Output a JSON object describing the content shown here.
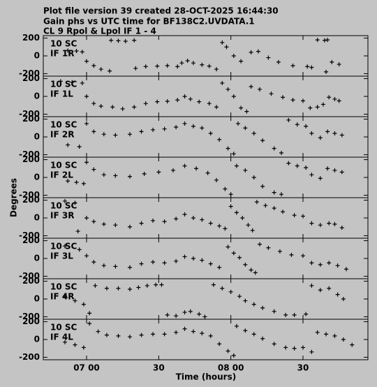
{
  "chart_data": {
    "type": "scatter",
    "title": "Plot file version 39  created 28-OCT-2025 16:44:30",
    "subtitle": "Gain phs vs UTC time for BF138C2.UVDATA.1",
    "subtitle2": "CL 9  Rpol & Lpol  IF 1 - 4",
    "ylabel": "Degrees",
    "xlabel": "Time (hours)",
    "color": "#000000",
    "xlim": [
      6.7,
      8.95
    ],
    "ylim": [
      -228,
      228
    ],
    "yticks": [
      200,
      0,
      -200
    ],
    "xticks": [
      {
        "value": 7.0,
        "label": "07 00"
      },
      {
        "value": 7.5,
        "label": "30"
      },
      {
        "value": 8.0,
        "label": "08 00"
      },
      {
        "value": 8.5,
        "label": "30"
      }
    ],
    "panels": [
      {
        "annotation": "10 SC",
        "label": "IF 1R",
        "x": [
          6.87,
          6.93,
          6.97,
          7.0,
          7.05,
          7.1,
          7.16,
          7.17,
          7.22,
          7.27,
          7.33,
          7.34,
          7.41,
          7.49,
          7.56,
          7.63,
          7.66,
          7.7,
          7.74,
          7.8,
          7.85,
          7.9,
          7.94,
          7.97,
          8.02,
          8.07,
          8.14,
          8.19,
          8.26,
          8.33,
          8.43,
          8.53,
          8.56,
          8.6,
          8.65,
          8.66,
          8.67,
          8.7,
          8.75
        ],
        "values": [
          60,
          55,
          45,
          -60,
          -110,
          -150,
          -170,
          175,
          170,
          165,
          175,
          -140,
          -120,
          -115,
          -110,
          -120,
          -80,
          -55,
          -80,
          -100,
          -115,
          -150,
          150,
          100,
          0,
          -60,
          40,
          50,
          -20,
          -70,
          -110,
          -120,
          -130,
          180,
          175,
          -180,
          180,
          -70,
          -95
        ]
      },
      {
        "annotation": "10 SC",
        "label": "IF 1L",
        "x": [
          6.82,
          6.9,
          6.97,
          7.0,
          7.05,
          7.1,
          7.18,
          7.25,
          7.33,
          7.41,
          7.49,
          7.56,
          7.63,
          7.68,
          7.72,
          7.78,
          7.85,
          7.9,
          7.94,
          7.98,
          8.02,
          8.07,
          8.11,
          8.14,
          8.2,
          8.28,
          8.36,
          8.43,
          8.5,
          8.55,
          8.6,
          8.64,
          8.68,
          8.72,
          8.75
        ],
        "values": [
          170,
          160,
          150,
          0,
          -80,
          -110,
          -120,
          -140,
          -120,
          -80,
          -60,
          -55,
          -40,
          0,
          -30,
          -60,
          -80,
          -120,
          150,
          80,
          0,
          -130,
          -170,
          110,
          80,
          30,
          -10,
          -40,
          -50,
          -130,
          -120,
          -90,
          -10,
          -30,
          -50
        ]
      },
      {
        "annotation": "10 SC",
        "label": "IF 2R",
        "x": [
          6.87,
          6.95,
          7.0,
          7.05,
          7.12,
          7.2,
          7.3,
          7.38,
          7.46,
          7.54,
          7.62,
          7.68,
          7.74,
          7.8,
          7.86,
          7.92,
          7.98,
          8.02,
          8.05,
          8.1,
          8.16,
          8.22,
          8.3,
          8.35,
          8.4,
          8.46,
          8.52,
          8.56,
          8.62,
          8.67,
          8.72,
          8.77
        ],
        "values": [
          -90,
          -110,
          150,
          60,
          30,
          20,
          30,
          60,
          80,
          90,
          110,
          150,
          120,
          100,
          40,
          -30,
          -130,
          -190,
          150,
          100,
          40,
          -40,
          -130,
          -180,
          190,
          140,
          120,
          40,
          -10,
          60,
          40,
          20
        ]
      },
      {
        "annotation": "10 SC",
        "label": "IF 2L",
        "x": [
          6.87,
          6.93,
          6.98,
          7.0,
          7.05,
          7.12,
          7.2,
          7.3,
          7.4,
          7.5,
          7.6,
          7.68,
          7.76,
          7.84,
          7.9,
          7.96,
          8.0,
          8.04,
          8.1,
          8.16,
          8.22,
          8.3,
          8.35,
          8.4,
          8.46,
          8.52,
          8.56,
          8.62,
          8.67,
          8.72,
          8.77
        ],
        "values": [
          -40,
          -55,
          -70,
          170,
          90,
          30,
          20,
          10,
          40,
          60,
          80,
          130,
          100,
          50,
          -30,
          -130,
          -190,
          130,
          80,
          0,
          -100,
          -170,
          -190,
          160,
          130,
          110,
          30,
          -10,
          100,
          80,
          60
        ]
      },
      {
        "annotation": "10 SC",
        "label": "IF 3R",
        "x": [
          6.85,
          6.92,
          6.94,
          7.0,
          7.05,
          7.12,
          7.2,
          7.3,
          7.38,
          7.46,
          7.54,
          7.62,
          7.68,
          7.74,
          7.8,
          7.86,
          7.92,
          7.96,
          8.0,
          8.04,
          8.08,
          8.12,
          8.15,
          8.18,
          8.24,
          8.3,
          8.36,
          8.44,
          8.5,
          8.56,
          8.62,
          8.68,
          8.72,
          8.77
        ],
        "values": [
          190,
          170,
          -150,
          0,
          -40,
          -70,
          -80,
          -100,
          -60,
          -30,
          -40,
          -10,
          40,
          0,
          -20,
          -60,
          -90,
          -120,
          130,
          60,
          0,
          -80,
          -140,
          180,
          140,
          110,
          70,
          30,
          20,
          -60,
          -80,
          -60,
          -70,
          -110
        ]
      },
      {
        "annotation": "10 SC",
        "label": "IF 3L",
        "x": [
          6.85,
          6.95,
          7.0,
          7.05,
          7.12,
          7.2,
          7.3,
          7.38,
          7.46,
          7.54,
          7.62,
          7.68,
          7.74,
          7.8,
          7.86,
          7.92,
          7.98,
          8.02,
          8.06,
          8.1,
          8.14,
          8.17,
          8.2,
          8.26,
          8.34,
          8.42,
          8.5,
          8.56,
          8.62,
          8.68,
          8.74,
          8.8
        ],
        "values": [
          140,
          100,
          30,
          -40,
          -80,
          -90,
          -100,
          -60,
          -40,
          -50,
          -30,
          20,
          0,
          -20,
          -60,
          -100,
          130,
          60,
          10,
          -70,
          -130,
          -160,
          160,
          120,
          80,
          40,
          30,
          -50,
          -70,
          -50,
          -80,
          -120
        ]
      },
      {
        "annotation": "10 SC",
        "label": "IF 4R",
        "x": [
          6.85,
          6.92,
          6.98,
          7.02,
          7.06,
          7.14,
          7.22,
          7.3,
          7.36,
          7.42,
          7.48,
          7.52,
          7.56,
          7.62,
          7.68,
          7.72,
          7.78,
          7.82,
          7.88,
          7.94,
          8.0,
          8.06,
          8.1,
          8.16,
          8.22,
          8.3,
          8.38,
          8.44,
          8.52,
          8.56,
          8.62,
          8.68,
          8.74,
          8.78
        ],
        "values": [
          30,
          -20,
          -60,
          -160,
          150,
          120,
          120,
          110,
          130,
          150,
          160,
          160,
          -180,
          -190,
          -150,
          -140,
          -170,
          -200,
          160,
          120,
          80,
          30,
          -20,
          -60,
          -100,
          -140,
          -180,
          -180,
          -170,
          150,
          100,
          120,
          50,
          0
        ]
      },
      {
        "annotation": "10 SC",
        "label": "IF 4L",
        "x": [
          6.85,
          6.92,
          6.98,
          7.02,
          7.08,
          7.14,
          7.22,
          7.3,
          7.38,
          7.46,
          7.54,
          7.62,
          7.68,
          7.74,
          7.8,
          7.86,
          7.92,
          7.98,
          8.02,
          8.04,
          8.1,
          8.16,
          8.22,
          8.3,
          8.38,
          8.44,
          8.5,
          8.56,
          8.6,
          8.66,
          8.72,
          8.78,
          8.84
        ],
        "values": [
          -30,
          -60,
          -90,
          180,
          90,
          50,
          40,
          30,
          50,
          60,
          60,
          80,
          120,
          90,
          70,
          40,
          -50,
          -130,
          -180,
          150,
          100,
          60,
          10,
          -50,
          -90,
          -100,
          -90,
          -140,
          80,
          60,
          40,
          0,
          -60
        ]
      }
    ]
  }
}
